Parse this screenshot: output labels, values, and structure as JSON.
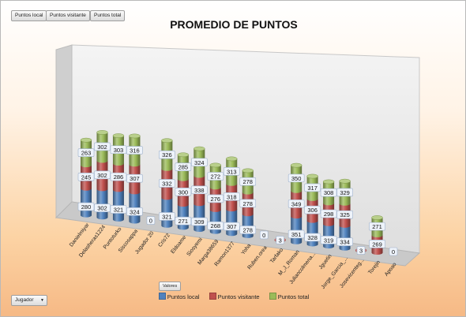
{
  "filters": {
    "field_buttons": [
      "Puntos local",
      "Puntos visitante",
      "Puntos total"
    ],
    "valores_label": "Valores",
    "row_field": "Jugador",
    "dropdown_icon": "triangle-down-icon"
  },
  "chart_data": {
    "type": "bar",
    "stacked": true,
    "three_d": true,
    "title": "PROMEDIO DE PUNTOS",
    "categories": [
      "Danielmiyar",
      "Delasheras1224",
      "Puntoturko",
      "Siscosappa",
      "Jugador 20",
      "Cris72",
      "Eldoame",
      "Siosyemi",
      "Marga38659",
      "Ramon1377",
      "Yoha",
      "Ruben.orea",
      "Tarfako",
      "M_J_Roman",
      "Juliancolmena...",
      "Jguetin",
      "Jorge_Garcia_...",
      "Josevicenteg...",
      "Torejin",
      "Apoao"
    ],
    "series": [
      {
        "name": "Puntos local",
        "color": "#4f81bd",
        "values": [
          280,
          302,
          321,
          324,
          0,
          321,
          271,
          309,
          268,
          307,
          278,
          0,
          null,
          351,
          328,
          319,
          334,
          null,
          null,
          null
        ]
      },
      {
        "name": "Puntos visitante",
        "color": "#c0504d",
        "values": [
          245,
          302,
          286,
          307,
          null,
          332,
          300,
          338,
          276,
          318,
          278,
          null,
          3,
          349,
          306,
          298,
          325,
          3,
          269,
          0
        ]
      },
      {
        "name": "Puntos total",
        "color": "#9bbb59",
        "values": [
          263,
          302,
          303,
          316,
          null,
          326,
          285,
          324,
          272,
          313,
          278,
          null,
          null,
          350,
          317,
          308,
          329,
          null,
          271,
          null
        ]
      }
    ],
    "value_labels": [
      [
        {
          "series": 0,
          "value": "280"
        },
        {
          "series": 1,
          "value": "245"
        },
        {
          "series": 2,
          "value": "263"
        }
      ],
      [
        {
          "series": 0,
          "value": "302"
        },
        {
          "series": 1,
          "value": "302"
        },
        {
          "series": 2,
          "value": "302"
        }
      ],
      [
        {
          "series": 0,
          "value": "321"
        },
        {
          "series": 1,
          "value": "286"
        },
        {
          "series": 2,
          "value": "303"
        }
      ],
      [
        {
          "series": 0,
          "value": "324"
        },
        {
          "series": 1,
          "value": "307"
        },
        {
          "series": 2,
          "value": "316"
        }
      ],
      [
        {
          "series": 0,
          "value": "0"
        }
      ],
      [
        {
          "series": 0,
          "value": "321"
        },
        {
          "series": 1,
          "value": "332"
        },
        {
          "series": 2,
          "value": "326"
        }
      ],
      [
        {
          "series": 0,
          "value": "271"
        },
        {
          "series": 1,
          "value": "300"
        },
        {
          "series": 2,
          "value": "285"
        }
      ],
      [
        {
          "series": 0,
          "value": "309"
        },
        {
          "series": 1,
          "value": "338"
        },
        {
          "series": 2,
          "value": "324"
        }
      ],
      [
        {
          "series": 0,
          "value": "268"
        },
        {
          "series": 1,
          "value": "276"
        },
        {
          "series": 2,
          "value": "272"
        }
      ],
      [
        {
          "series": 0,
          "value": "307"
        },
        {
          "series": 1,
          "value": "318"
        },
        {
          "series": 2,
          "value": "313"
        }
      ],
      [
        {
          "series": 0,
          "value": "278"
        },
        {
          "series": 1,
          "value": "278"
        },
        {
          "series": 2,
          "value": "278"
        }
      ],
      [
        {
          "series": 0,
          "value": "0"
        }
      ],
      [
        {
          "series": 1,
          "value": "3"
        }
      ],
      [
        {
          "series": 0,
          "value": "351"
        },
        {
          "series": 1,
          "value": "349"
        },
        {
          "series": 2,
          "value": "350"
        }
      ],
      [
        {
          "series": 0,
          "value": "328"
        },
        {
          "series": 1,
          "value": "306"
        },
        {
          "series": 2,
          "value": "317"
        }
      ],
      [
        {
          "series": 0,
          "value": "319"
        },
        {
          "series": 1,
          "value": "298"
        },
        {
          "series": 2,
          "value": "308"
        }
      ],
      [
        {
          "series": 0,
          "value": "334"
        },
        {
          "series": 1,
          "value": "325"
        },
        {
          "series": 2,
          "value": "329"
        }
      ],
      [
        {
          "series": 1,
          "value": "3"
        }
      ],
      [
        {
          "series": 1,
          "value": "269"
        },
        {
          "series": 2,
          "value": "271"
        }
      ],
      [
        {
          "series": 1,
          "value": "0"
        }
      ]
    ],
    "legend_position": "bottom",
    "grid": false
  }
}
